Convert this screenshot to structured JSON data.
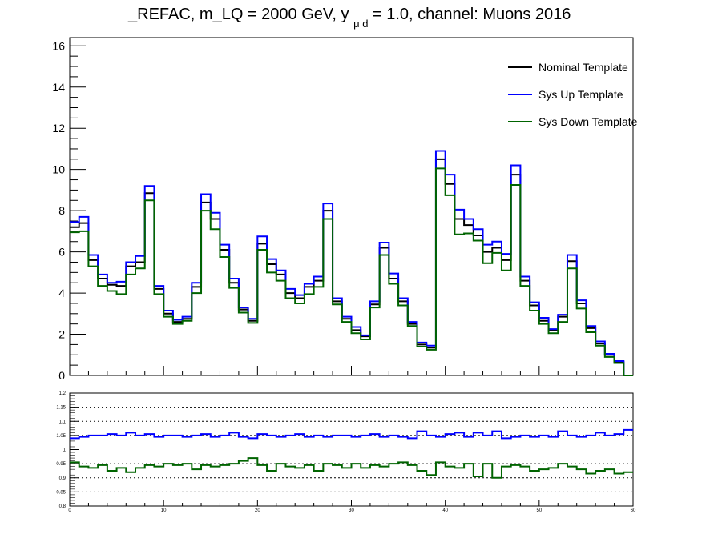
{
  "title": {
    "prefix": "_REFAC, m_LQ = 2000 GeV, y",
    "subscript": "μ d",
    "suffix": " = 1.0, channel: Muons 2016"
  },
  "colors": {
    "nominal": "#000000",
    "up": "#0000ff",
    "down": "#006400"
  },
  "chart_data": [
    {
      "type": "line",
      "step": true,
      "x_edges_range": [
        0,
        60
      ],
      "xlim": [
        0,
        60
      ],
      "ylim": [
        0,
        16.4
      ],
      "y_ticks": [
        0,
        2,
        4,
        6,
        8,
        10,
        12,
        14,
        16
      ],
      "x_tick_labels_shown": false,
      "legend_position": "top-right",
      "series": [
        {
          "name": "Nominal Template",
          "color": "#000000",
          "values": [
            7.2,
            7.4,
            5.6,
            4.7,
            4.4,
            4.35,
            5.3,
            5.5,
            8.85,
            4.2,
            3.0,
            2.6,
            2.75,
            4.3,
            8.4,
            7.6,
            6.1,
            4.5,
            3.2,
            2.65,
            6.4,
            5.4,
            4.9,
            4.0,
            3.75,
            4.3,
            4.6,
            8.0,
            3.6,
            2.75,
            2.2,
            1.9,
            3.45,
            6.2,
            4.7,
            3.6,
            2.5,
            1.5,
            1.35,
            10.5,
            9.3,
            7.6,
            7.3,
            6.8,
            6.0,
            6.2,
            5.6,
            9.75,
            4.6,
            3.4,
            2.65,
            2.2,
            2.85,
            5.55,
            3.5,
            2.3,
            1.55,
            1.0,
            0.65,
            0.0
          ]
        },
        {
          "name": "Sys Up Template",
          "color": "#0000ff",
          "values": [
            7.45,
            7.7,
            5.85,
            4.9,
            4.5,
            4.55,
            5.5,
            5.8,
            9.2,
            4.35,
            3.15,
            2.7,
            2.85,
            4.5,
            8.8,
            7.9,
            6.35,
            4.7,
            3.3,
            2.75,
            6.75,
            5.65,
            5.1,
            4.2,
            3.9,
            4.45,
            4.8,
            8.35,
            3.75,
            2.85,
            2.35,
            1.95,
            3.6,
            6.45,
            4.95,
            3.75,
            2.6,
            1.6,
            1.45,
            10.9,
            9.75,
            8.05,
            7.6,
            7.1,
            6.35,
            6.5,
            5.9,
            10.2,
            4.8,
            3.55,
            2.8,
            2.25,
            2.95,
            5.85,
            3.65,
            2.4,
            1.65,
            1.05,
            0.7,
            0.0
          ]
        },
        {
          "name": "Sys Down Template",
          "color": "#006400",
          "values": [
            6.95,
            7.0,
            5.3,
            4.35,
            4.1,
            3.95,
            4.9,
            5.2,
            8.5,
            3.95,
            2.85,
            2.5,
            2.65,
            4.0,
            8.0,
            7.1,
            5.75,
            4.25,
            3.05,
            2.55,
            6.1,
            5.0,
            4.6,
            3.75,
            3.5,
            3.95,
            4.3,
            7.6,
            3.45,
            2.6,
            2.05,
            1.75,
            3.3,
            5.85,
            4.45,
            3.4,
            2.4,
            1.4,
            1.25,
            10.05,
            8.75,
            6.85,
            6.9,
            6.55,
            5.45,
            5.95,
            5.1,
            9.25,
            4.35,
            3.15,
            2.5,
            2.05,
            2.6,
            5.2,
            3.25,
            2.1,
            1.45,
            0.9,
            0.6,
            0.0
          ]
        }
      ]
    },
    {
      "type": "line",
      "step": true,
      "xlim": [
        0,
        60
      ],
      "ylim": [
        0.8,
        1.2
      ],
      "y_ticks": [
        0.8,
        0.85,
        0.9,
        0.95,
        1,
        1.05,
        1.1,
        1.15,
        1.2
      ],
      "y_tick_labels": [
        "0.8",
        "0.85",
        "0.9",
        "0.95",
        "1",
        "1.05",
        "1.1",
        "1.15",
        "1.2"
      ],
      "x_ticks": [
        0,
        10,
        20,
        30,
        40,
        50,
        60
      ],
      "x_tick_labels": [
        "0",
        "10",
        "20",
        "30",
        "40",
        "50",
        "60"
      ],
      "grid_dashed_at": [
        0.85,
        0.9,
        0.95,
        1.05,
        1.1,
        1.15
      ],
      "series": [
        {
          "color": "#0000ff",
          "values": [
            1.04,
            1.045,
            1.05,
            1.05,
            1.055,
            1.05,
            1.06,
            1.05,
            1.055,
            1.045,
            1.05,
            1.05,
            1.045,
            1.05,
            1.055,
            1.045,
            1.05,
            1.06,
            1.045,
            1.04,
            1.055,
            1.05,
            1.045,
            1.05,
            1.055,
            1.045,
            1.05,
            1.045,
            1.05,
            1.05,
            1.045,
            1.05,
            1.055,
            1.045,
            1.05,
            1.045,
            1.04,
            1.065,
            1.05,
            1.045,
            1.055,
            1.06,
            1.045,
            1.06,
            1.05,
            1.065,
            1.04,
            1.045,
            1.05,
            1.045,
            1.05,
            1.045,
            1.065,
            1.05,
            1.045,
            1.05,
            1.06,
            1.05,
            1.055,
            1.07
          ]
        },
        {
          "color": "#006400",
          "values": [
            0.955,
            0.94,
            0.935,
            0.945,
            0.925,
            0.935,
            0.92,
            0.935,
            0.945,
            0.94,
            0.95,
            0.945,
            0.95,
            0.93,
            0.945,
            0.94,
            0.945,
            0.95,
            0.96,
            0.97,
            0.945,
            0.925,
            0.95,
            0.94,
            0.935,
            0.945,
            0.925,
            0.95,
            0.945,
            0.935,
            0.95,
            0.935,
            0.945,
            0.94,
            0.95,
            0.955,
            0.945,
            0.925,
            0.91,
            0.955,
            0.94,
            0.935,
            0.95,
            0.905,
            0.95,
            0.9,
            0.94,
            0.945,
            0.94,
            0.925,
            0.93,
            0.935,
            0.95,
            0.94,
            0.93,
            0.915,
            0.925,
            0.93,
            0.915,
            0.92
          ]
        }
      ]
    }
  ]
}
